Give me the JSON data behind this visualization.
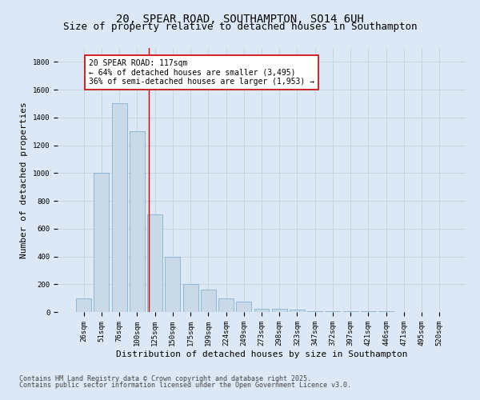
{
  "title1": "20, SPEAR ROAD, SOUTHAMPTON, SO14 6UH",
  "title2": "Size of property relative to detached houses in Southampton",
  "xlabel": "Distribution of detached houses by size in Southampton",
  "ylabel": "Number of detached properties",
  "categories": [
    "26sqm",
    "51sqm",
    "76sqm",
    "100sqm",
    "125sqm",
    "150sqm",
    "175sqm",
    "199sqm",
    "224sqm",
    "249sqm",
    "273sqm",
    "298sqm",
    "323sqm",
    "347sqm",
    "372sqm",
    "397sqm",
    "421sqm",
    "446sqm",
    "471sqm",
    "495sqm",
    "520sqm"
  ],
  "values": [
    100,
    1000,
    1500,
    1300,
    700,
    400,
    200,
    160,
    100,
    75,
    25,
    25,
    15,
    6,
    5,
    5,
    5,
    5,
    1,
    1,
    0
  ],
  "bar_color": "#c9d9e8",
  "bar_edge_color": "#7aa8c8",
  "grid_color": "#c8d4e0",
  "bg_color": "#dce8f5",
  "vline_color": "#cc0000",
  "annotation_title": "20 SPEAR ROAD: 117sqm",
  "annotation_line1": "← 64% of detached houses are smaller (3,495)",
  "annotation_line2": "36% of semi-detached houses are larger (1,953) →",
  "annotation_box_color": "#cc0000",
  "annotation_bg": "#ffffff",
  "ylim": [
    0,
    1900
  ],
  "yticks": [
    0,
    200,
    400,
    600,
    800,
    1000,
    1200,
    1400,
    1600,
    1800
  ],
  "footnote1": "Contains HM Land Registry data © Crown copyright and database right 2025.",
  "footnote2": "Contains public sector information licensed under the Open Government Licence v3.0.",
  "title_fontsize": 10,
  "subtitle_fontsize": 9,
  "axis_label_fontsize": 8,
  "tick_fontsize": 6.5,
  "annotation_fontsize": 7,
  "footnote_fontsize": 6
}
